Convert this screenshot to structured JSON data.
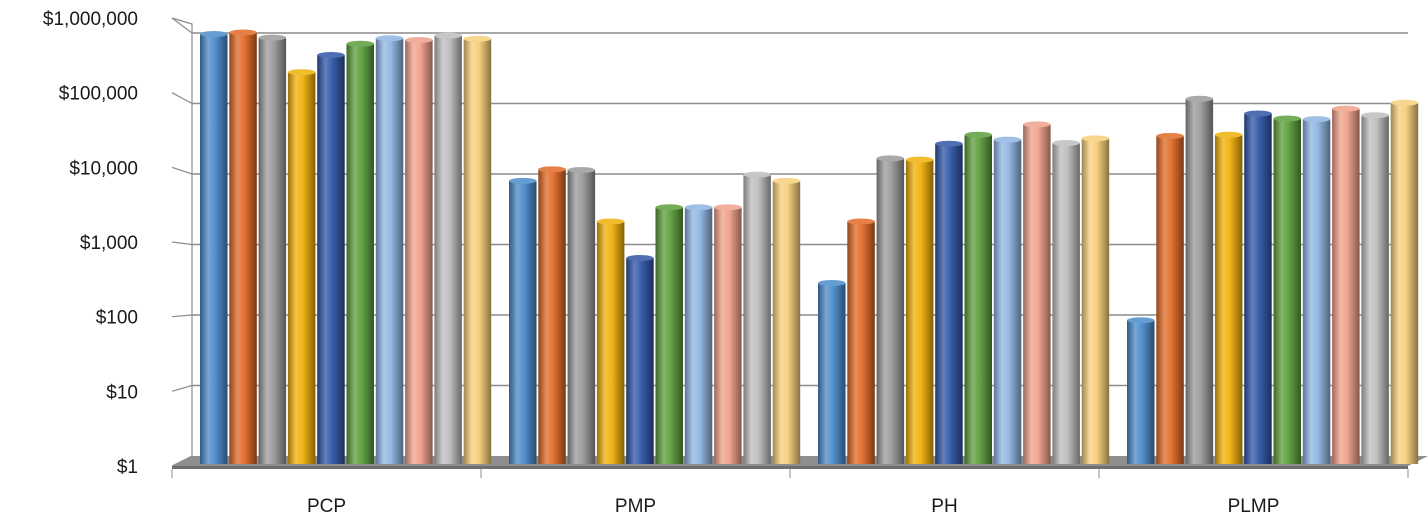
{
  "chart_data": {
    "type": "bar",
    "title": "",
    "xlabel": "",
    "ylabel": "",
    "y_scale": "log",
    "ylim": [
      1,
      1000000
    ],
    "y_ticks": [
      1,
      10,
      100,
      1000,
      10000,
      100000,
      1000000
    ],
    "y_tick_labels": [
      "$1",
      "$10",
      "$100",
      "$1,000",
      "$10,000",
      "$100,000",
      "$1,000,000"
    ],
    "grid": true,
    "legend": "none",
    "style": "3d-cylinder",
    "categories": [
      "PCP",
      "PMP",
      "PH",
      "PLMP"
    ],
    "series": [
      {
        "color": "#4a8ac9",
        "values": [
          650000,
          7000,
          300,
          95
        ]
      },
      {
        "color": "#e06a26",
        "values": [
          680000,
          10000,
          2000,
          28000
        ]
      },
      {
        "color": "#9a9a9a",
        "values": [
          580000,
          9800,
          14000,
          88000
        ]
      },
      {
        "color": "#f0b00a",
        "values": [
          200000,
          2000,
          13500,
          29000
        ]
      },
      {
        "color": "#2f56a6",
        "values": [
          340000,
          650,
          22000,
          56000
        ]
      },
      {
        "color": "#5c9e3c",
        "values": [
          480000,
          3100,
          29000,
          48000
        ]
      },
      {
        "color": "#8fb4e3",
        "values": [
          570000,
          3100,
          25000,
          47000
        ]
      },
      {
        "color": "#f0a08a",
        "values": [
          540000,
          3100,
          40000,
          65000
        ]
      },
      {
        "color": "#bdbdbd",
        "values": [
          620000,
          8500,
          22500,
          53000
        ]
      },
      {
        "color": "#f7cf7a",
        "values": [
          560000,
          7000,
          26000,
          78000
        ]
      }
    ]
  }
}
